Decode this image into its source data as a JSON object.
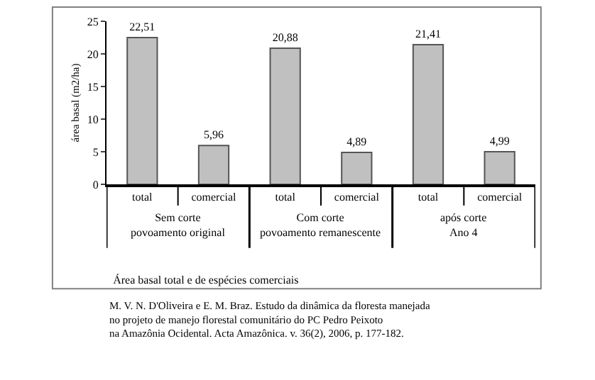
{
  "chart_data": {
    "type": "bar",
    "title": "Área basal total e de espécies comerciais",
    "ylabel": "área basal (m2/ha)",
    "categories": [
      "total",
      "comercial",
      "total",
      "comercial",
      "total",
      "comercial"
    ],
    "values": [
      22.51,
      5.96,
      20.88,
      4.89,
      21.41,
      4.99
    ],
    "value_labels": [
      "22,51",
      "5,96",
      "20,88",
      "4,89",
      "21,41",
      "4,99"
    ],
    "color": "#c0c0c0",
    "ylim": [
      0,
      25
    ],
    "yticks": [
      0,
      5,
      10,
      15,
      20,
      25
    ],
    "annotations": [
      "Sem corte\npovoamento original",
      "Com corte\npovoamento remanescente",
      "após corte\nAno 4",
      "M. V. N. D'Oliveira e E. M. Braz. Estudo da dinâmica da floresta manejada\nno projeto de manejo florestal comunitário do PC Pedro Peixoto\nna Amazônia Ocidental. Acta Amazônica. v. 36(2), 2006, p. 177-182."
    ]
  }
}
